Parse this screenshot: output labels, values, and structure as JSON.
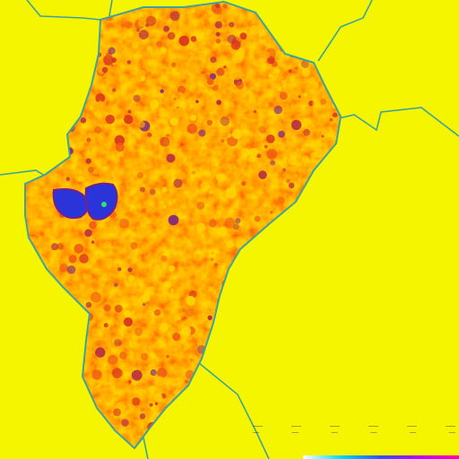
{
  "map": {
    "background_color": "#f5f500",
    "border_color": "#3fa39a",
    "region_palette": [
      "#ffd400",
      "#ffb000",
      "#ff8a00",
      "#f05a14",
      "#d8301e",
      "#b0204a",
      "#7a1e8a",
      "#2a34d8"
    ],
    "highlight_point_color": "#2fe06a"
  },
  "legend": {
    "row1": [
      "———",
      "———",
      "———",
      "———",
      "———",
      "———"
    ],
    "row2": [
      "——",
      "——",
      "——",
      "——",
      "——",
      "——"
    ],
    "gradient_colors": [
      "#ffffff",
      "#00d8ff",
      "#3050ff",
      "#c000ff",
      "#ff00a0"
    ]
  }
}
